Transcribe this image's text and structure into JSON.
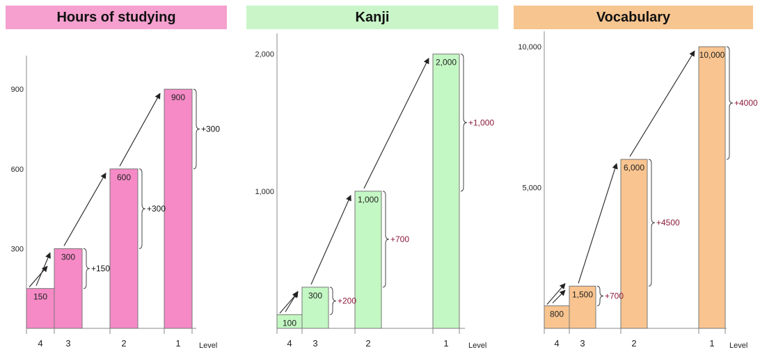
{
  "chart_data": [
    {
      "type": "bar",
      "title": "Hours of studying",
      "title_bg": "#f5a0cf",
      "bar_color": "#f58ac6",
      "increment_color": "#111111",
      "xlabel": "Level",
      "ylim": [
        0,
        1000
      ],
      "yticks": [
        "300",
        "600",
        "900"
      ],
      "ytick_values": [
        300,
        600,
        900
      ],
      "categories": [
        "4",
        "3",
        "2",
        "1"
      ],
      "values": [
        150,
        300,
        600,
        900
      ],
      "value_labels": [
        "150",
        "300",
        "600",
        "900"
      ],
      "increments": [
        "+150",
        "+300",
        "+300"
      ]
    },
    {
      "type": "bar",
      "title": "Kanji",
      "title_bg": "#c9f5c9",
      "bar_color": "#c3f7c3",
      "increment_color": "#8b1a3a",
      "xlabel": "Level",
      "ylim": [
        0,
        2100
      ],
      "yticks": [
        "1,000",
        "2,000"
      ],
      "ytick_values": [
        1000,
        2000
      ],
      "categories": [
        "4",
        "3",
        "2",
        "1"
      ],
      "values": [
        100,
        300,
        1000,
        2000
      ],
      "value_labels": [
        "100",
        "300",
        "1,000",
        "2,000"
      ],
      "increments": [
        "+200",
        "+700",
        "+1,000"
      ]
    },
    {
      "type": "bar",
      "title": "Vocabulary",
      "title_bg": "#f7c590",
      "bar_color": "#f9c48f",
      "increment_color": "#8b1a3a",
      "xlabel": "Level",
      "ylim": [
        0,
        10300
      ],
      "yticks": [
        "5,000",
        "10,000"
      ],
      "ytick_values": [
        5000,
        10000
      ],
      "categories": [
        "4",
        "3",
        "2",
        "1"
      ],
      "values": [
        800,
        1500,
        6000,
        10000
      ],
      "value_labels": [
        "800",
        "1,500",
        "6,000",
        "10,000"
      ],
      "increments": [
        "+700",
        "+4500",
        "+4000"
      ]
    }
  ]
}
